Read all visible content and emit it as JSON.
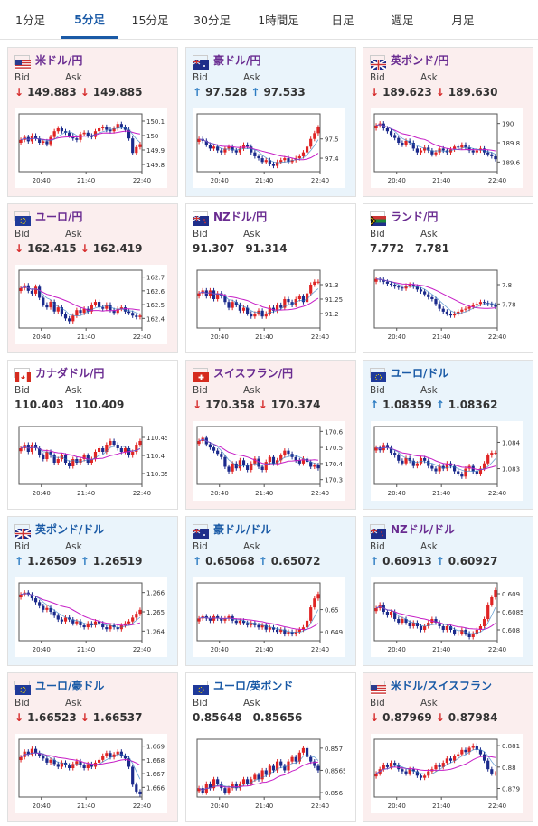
{
  "tabs": [
    {
      "label": "1分足",
      "active": false
    },
    {
      "label": "5分足",
      "active": true
    },
    {
      "label": "15分足",
      "active": false
    },
    {
      "label": "30分足",
      "active": false
    },
    {
      "label": "1時間足",
      "active": false
    },
    {
      "label": "日足",
      "active": false
    },
    {
      "label": "週足",
      "active": false
    },
    {
      "label": "月足",
      "active": false
    }
  ],
  "bid_label": "Bid",
  "ask_label": "Ask",
  "x_ticks": [
    "20:40",
    "21:40",
    "22:40"
  ],
  "cards": [
    {
      "name": "米ドル/円",
      "flag": "us",
      "color": "purple",
      "bg": "down",
      "dir": "down",
      "bid": "149.883",
      "ask": "149.885",
      "y_ticks": [
        "150.1",
        "150",
        "149.9",
        "149.8"
      ],
      "ylim": [
        149.75,
        150.15
      ],
      "closes": [
        149.97,
        149.99,
        149.96,
        150.0,
        149.98,
        149.95,
        149.96,
        149.94,
        149.99,
        150.03,
        150.05,
        150.03,
        150.02,
        150.0,
        149.98,
        149.97,
        150.01,
        150.02,
        150.0,
        149.99,
        150.03,
        150.05,
        150.06,
        150.04,
        150.03,
        150.05,
        150.08,
        150.06,
        150.04,
        149.98,
        149.88,
        149.92,
        149.94
      ]
    },
    {
      "name": "豪ドル/円",
      "flag": "au",
      "color": "purple",
      "bg": "up",
      "dir": "up",
      "bid": "97.528",
      "ask": "97.533",
      "y_ticks": [
        "97.5",
        "97.4"
      ],
      "ylim": [
        97.33,
        97.63
      ],
      "closes": [
        97.5,
        97.49,
        97.47,
        97.45,
        97.46,
        97.44,
        97.43,
        97.45,
        97.46,
        97.44,
        97.43,
        97.45,
        97.47,
        97.46,
        97.43,
        97.41,
        97.4,
        97.38,
        97.39,
        97.37,
        97.36,
        97.38,
        97.39,
        97.4,
        97.38,
        97.39,
        97.4,
        97.41,
        97.43,
        97.46,
        97.5,
        97.53,
        97.56
      ]
    },
    {
      "name": "英ポンド/円",
      "flag": "gb",
      "color": "purple",
      "bg": "down",
      "dir": "down",
      "bid": "189.623",
      "ask": "189.630",
      "y_ticks": [
        "190",
        "189.8",
        "189.6"
      ],
      "ylim": [
        189.5,
        190.1
      ],
      "closes": [
        189.98,
        190.0,
        189.95,
        189.92,
        189.88,
        189.85,
        189.8,
        189.78,
        189.82,
        189.8,
        189.74,
        189.7,
        189.72,
        189.75,
        189.72,
        189.68,
        189.7,
        189.74,
        189.72,
        189.7,
        189.73,
        189.76,
        189.75,
        189.78,
        189.75,
        189.72,
        189.7,
        189.72,
        189.74,
        189.7,
        189.68,
        189.66,
        189.63
      ]
    },
    {
      "name": "ユーロ/円",
      "flag": "eu",
      "color": "purple",
      "bg": "down",
      "dir": "down",
      "bid": "162.415",
      "ask": "162.419",
      "y_ticks": [
        "162.7",
        "162.6",
        "162.5",
        "162.4"
      ],
      "ylim": [
        162.33,
        162.75
      ],
      "closes": [
        162.62,
        162.64,
        162.6,
        162.58,
        162.63,
        162.55,
        162.5,
        162.48,
        162.52,
        162.45,
        162.48,
        162.43,
        162.4,
        162.38,
        162.42,
        162.46,
        162.44,
        162.47,
        162.45,
        162.5,
        162.52,
        162.48,
        162.47,
        162.5,
        162.46,
        162.44,
        162.47,
        162.48,
        162.45,
        162.44,
        162.42,
        162.41,
        162.42
      ]
    },
    {
      "name": "NZドル/円",
      "flag": "nz",
      "color": "purple",
      "bg": "flat",
      "dir": "none",
      "bid": "91.307",
      "ask": "91.314",
      "y_ticks": [
        "91.3",
        "91.25",
        "91.2"
      ],
      "ylim": [
        91.15,
        91.35
      ],
      "closes": [
        91.27,
        91.28,
        91.26,
        91.28,
        91.25,
        91.27,
        91.26,
        91.24,
        91.22,
        91.24,
        91.23,
        91.21,
        91.22,
        91.2,
        91.19,
        91.2,
        91.21,
        91.19,
        91.2,
        91.22,
        91.21,
        91.23,
        91.22,
        91.25,
        91.24,
        91.23,
        91.25,
        91.26,
        91.24,
        91.27,
        91.3,
        91.31,
        91.31
      ]
    },
    {
      "name": "ランド/円",
      "flag": "za",
      "color": "purple",
      "bg": "flat",
      "dir": "none",
      "bid": "7.772",
      "ask": "7.781",
      "y_ticks": [
        "7.8",
        "7.78"
      ],
      "ylim": [
        7.755,
        7.815
      ],
      "closes": [
        7.806,
        7.805,
        7.803,
        7.801,
        7.8,
        7.798,
        7.797,
        7.796,
        7.799,
        7.8,
        7.798,
        7.795,
        7.793,
        7.79,
        7.787,
        7.785,
        7.78,
        7.775,
        7.772,
        7.77,
        7.768,
        7.77,
        7.772,
        7.774,
        7.775,
        7.777,
        7.779,
        7.78,
        7.782,
        7.781,
        7.78,
        7.779,
        7.777
      ]
    },
    {
      "name": "カナダドル/円",
      "flag": "ca",
      "color": "purple",
      "bg": "flat",
      "dir": "none",
      "bid": "110.403",
      "ask": "110.409",
      "y_ticks": [
        "110.45",
        "110.4",
        "110.35"
      ],
      "ylim": [
        110.32,
        110.48
      ],
      "closes": [
        110.42,
        110.43,
        110.41,
        110.43,
        110.42,
        110.4,
        110.39,
        110.41,
        110.4,
        110.38,
        110.39,
        110.4,
        110.38,
        110.37,
        110.39,
        110.38,
        110.39,
        110.4,
        110.38,
        110.39,
        110.41,
        110.42,
        110.41,
        110.43,
        110.44,
        110.43,
        110.42,
        110.41,
        110.42,
        110.4,
        110.41,
        110.43,
        110.44
      ]
    },
    {
      "name": "スイスフラン/円",
      "flag": "ch",
      "color": "purple",
      "bg": "down",
      "dir": "down",
      "bid": "170.358",
      "ask": "170.374",
      "y_ticks": [
        "170.6",
        "170.5",
        "170.4",
        "170.3"
      ],
      "ylim": [
        170.27,
        170.63
      ],
      "closes": [
        170.54,
        170.56,
        170.52,
        170.5,
        170.48,
        170.46,
        170.44,
        170.38,
        170.35,
        170.4,
        170.37,
        170.42,
        170.39,
        170.36,
        170.4,
        170.43,
        170.38,
        170.36,
        170.41,
        170.44,
        170.4,
        170.42,
        170.45,
        170.48,
        170.46,
        170.44,
        170.42,
        170.4,
        170.43,
        170.41,
        170.38,
        170.39,
        170.37
      ]
    },
    {
      "name": "ユーロ/ドル",
      "flag": "eu",
      "color": "blue",
      "bg": "up",
      "dir": "up",
      "bid": "1.08359",
      "ask": "1.08362",
      "y_ticks": [
        "1.084",
        "1.083"
      ],
      "ylim": [
        1.0824,
        1.0846
      ],
      "closes": [
        1.0838,
        1.0837,
        1.0839,
        1.0838,
        1.0836,
        1.0835,
        1.0833,
        1.0832,
        1.0834,
        1.0833,
        1.0831,
        1.0832,
        1.0834,
        1.0833,
        1.0831,
        1.083,
        1.0829,
        1.0831,
        1.083,
        1.0832,
        1.0831,
        1.0829,
        1.0828,
        1.0827,
        1.083,
        1.0831,
        1.0829,
        1.0828,
        1.083,
        1.0832,
        1.0835,
        1.0836,
        1.0836
      ]
    },
    {
      "name": "英ポンド/ドル",
      "flag": "gb",
      "color": "blue",
      "bg": "up",
      "dir": "up",
      "bid": "1.26509",
      "ask": "1.26519",
      "y_ticks": [
        "1.266",
        "1.265",
        "1.264"
      ],
      "ylim": [
        1.2635,
        1.2665
      ],
      "closes": [
        1.2659,
        1.266,
        1.2659,
        1.2657,
        1.2655,
        1.2653,
        1.2651,
        1.2652,
        1.265,
        1.2648,
        1.2646,
        1.2645,
        1.2647,
        1.2646,
        1.2644,
        1.2645,
        1.2643,
        1.2642,
        1.2644,
        1.2643,
        1.2645,
        1.2644,
        1.2642,
        1.2641,
        1.2643,
        1.2642,
        1.2641,
        1.2643,
        1.2644,
        1.2645,
        1.2647,
        1.2649,
        1.2651
      ]
    },
    {
      "name": "豪ドル/ドル",
      "flag": "au",
      "color": "blue",
      "bg": "up",
      "dir": "up",
      "bid": "0.65068",
      "ask": "0.65072",
      "y_ticks": [
        "0.65",
        "0.649"
      ],
      "ylim": [
        0.6486,
        0.6512
      ],
      "closes": [
        0.6496,
        0.6497,
        0.6496,
        0.6495,
        0.6497,
        0.6496,
        0.6495,
        0.6496,
        0.6497,
        0.6495,
        0.6494,
        0.6495,
        0.6494,
        0.6493,
        0.6494,
        0.6493,
        0.6492,
        0.6493,
        0.6491,
        0.6492,
        0.6491,
        0.649,
        0.6491,
        0.6489,
        0.649,
        0.6489,
        0.649,
        0.6491,
        0.6492,
        0.6495,
        0.6501,
        0.6505,
        0.6507
      ]
    },
    {
      "name": "NZドル/ドル",
      "flag": "nz",
      "color": "purple",
      "bg": "up",
      "dir": "up",
      "bid": "0.60913",
      "ask": "0.60927",
      "y_ticks": [
        "0.609",
        "0.6085",
        "0.608"
      ],
      "ylim": [
        0.6077,
        0.6093
      ],
      "closes": [
        0.6086,
        0.6087,
        0.6085,
        0.6084,
        0.6085,
        0.6083,
        0.6082,
        0.6083,
        0.6082,
        0.6081,
        0.6082,
        0.6081,
        0.608,
        0.6081,
        0.6082,
        0.6083,
        0.6082,
        0.6081,
        0.608,
        0.6081,
        0.608,
        0.6079,
        0.6079,
        0.608,
        0.6079,
        0.6078,
        0.6079,
        0.608,
        0.6081,
        0.6083,
        0.6087,
        0.6089,
        0.6091
      ]
    },
    {
      "name": "ユーロ/豪ドル",
      "flag": "eu",
      "color": "blue",
      "bg": "down",
      "dir": "down",
      "bid": "1.66523",
      "ask": "1.66537",
      "y_ticks": [
        "1.669",
        "1.668",
        "1.667",
        "1.666"
      ],
      "ylim": [
        1.6653,
        1.6695
      ],
      "closes": [
        1.6682,
        1.6686,
        1.6684,
        1.6688,
        1.6685,
        1.6683,
        1.6681,
        1.6678,
        1.668,
        1.6677,
        1.6675,
        1.6678,
        1.6676,
        1.6674,
        1.6677,
        1.6679,
        1.6676,
        1.6674,
        1.6677,
        1.6675,
        1.6678,
        1.668,
        1.6683,
        1.6685,
        1.6682,
        1.6684,
        1.6686,
        1.6683,
        1.6681,
        1.6675,
        1.6662,
        1.6657,
        1.6655
      ]
    },
    {
      "name": "ユーロ/英ポンド",
      "flag": "eu",
      "color": "blue",
      "bg": "flat",
      "dir": "none",
      "bid": "0.85648",
      "ask": "0.85656",
      "y_ticks": [
        "0.857",
        "0.8565",
        "0.856"
      ],
      "ylim": [
        0.8559,
        0.8572
      ],
      "closes": [
        0.8561,
        0.856,
        0.8562,
        0.8561,
        0.8563,
        0.8562,
        0.8561,
        0.856,
        0.8561,
        0.8562,
        0.8561,
        0.8562,
        0.8563,
        0.8562,
        0.8563,
        0.8564,
        0.8563,
        0.8565,
        0.8564,
        0.8566,
        0.8565,
        0.8567,
        0.8566,
        0.8565,
        0.8567,
        0.8568,
        0.8567,
        0.8569,
        0.857,
        0.8568,
        0.8567,
        0.8566,
        0.8565
      ]
    },
    {
      "name": "米ドル/スイスフラン",
      "flag": "us",
      "color": "blue",
      "bg": "down",
      "dir": "down",
      "bid": "0.87969",
      "ask": "0.87984",
      "y_ticks": [
        "0.881",
        "0.88",
        "0.879"
      ],
      "ylim": [
        0.8786,
        0.8813
      ],
      "closes": [
        0.8797,
        0.8799,
        0.8801,
        0.88,
        0.8802,
        0.8801,
        0.8799,
        0.8798,
        0.8797,
        0.8799,
        0.8798,
        0.8796,
        0.8795,
        0.8796,
        0.8798,
        0.8799,
        0.8801,
        0.88,
        0.8802,
        0.8804,
        0.8803,
        0.8805,
        0.8806,
        0.8808,
        0.8807,
        0.8809,
        0.881,
        0.8808,
        0.8806,
        0.8803,
        0.8799,
        0.8797,
        0.8797
      ]
    }
  ],
  "colors": {
    "tab_active": "#1a5aa6",
    "down": "#d62d2d",
    "up": "#2b7bc2",
    "candle_up": "#e02424",
    "candle_down": "#1b2a8c",
    "ma": "#c61ec6",
    "ma2": "#2b7bc2"
  }
}
